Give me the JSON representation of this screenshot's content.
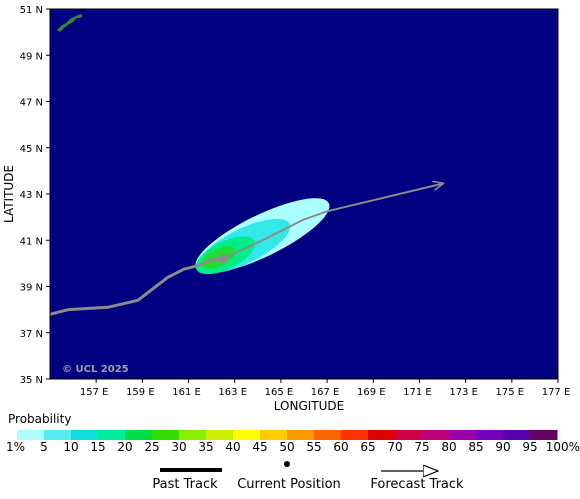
{
  "chart_data": {
    "type": "map",
    "credit": "© UCL 2025",
    "xlabel": "LONGITUDE",
    "ylabel": "LATITUDE",
    "xlim": [
      155,
      177
    ],
    "ylim": [
      35,
      51
    ],
    "x_ticks": [
      157,
      159,
      161,
      163,
      165,
      167,
      169,
      171,
      173,
      175,
      177
    ],
    "x_tick_labels": [
      "157 E",
      "159 E",
      "161 E",
      "163 E",
      "165 E",
      "167 E",
      "169 E",
      "171 E",
      "173 E",
      "175 E",
      "177 E"
    ],
    "y_ticks": [
      35,
      37,
      39,
      41,
      43,
      45,
      47,
      49,
      51
    ],
    "y_tick_labels": [
      "35 N",
      "37 N",
      "39 N",
      "41 N",
      "43 N",
      "45 N",
      "47 N",
      "49 N",
      "51 N"
    ],
    "ocean_color": "#000080",
    "land_color": "#2e8b2e",
    "track_color": "#8c8c8c",
    "past_track": [
      [
        155.0,
        37.8
      ],
      [
        155.8,
        38.0
      ],
      [
        157.5,
        38.1
      ],
      [
        158.8,
        38.4
      ],
      [
        160.1,
        39.4
      ],
      [
        160.8,
        39.75
      ],
      [
        161.4,
        39.9
      ],
      [
        162.0,
        40.15
      ],
      [
        162.5,
        40.2
      ]
    ],
    "current_position": [
      162.5,
      40.2
    ],
    "forecast_track": [
      [
        162.5,
        40.2
      ],
      [
        164.2,
        41.0
      ],
      [
        166.0,
        41.9
      ],
      [
        167.0,
        42.25
      ],
      [
        172.0,
        43.45
      ]
    ],
    "probability_field": {
      "description": "strike probability swath along forecast track",
      "levels": [
        {
          "lon": 164.2,
          "lat": 41.2,
          "rx": 3.2,
          "ry": 0.9,
          "angle": -26,
          "color": "#aaffff"
        },
        {
          "lon": 163.4,
          "lat": 40.75,
          "rx": 2.2,
          "ry": 0.75,
          "angle": -26,
          "color": "#33e8e8"
        },
        {
          "lon": 162.6,
          "lat": 40.35,
          "rx": 1.4,
          "ry": 0.6,
          "angle": -26,
          "color": "#00ee88"
        },
        {
          "lon": 162.3,
          "lat": 40.25,
          "rx": 0.8,
          "ry": 0.38,
          "angle": -26,
          "color": "#22dd33"
        }
      ]
    },
    "legend": {
      "title": "Probability",
      "labels": [
        "1%",
        "5",
        "10",
        "15",
        "20",
        "25",
        "30",
        "35",
        "40",
        "45",
        "50",
        "55",
        "60",
        "65",
        "70",
        "75",
        "80",
        "85",
        "90",
        "95",
        "100%"
      ],
      "colors": [
        "#aaffff",
        "#55eeee",
        "#11dddd",
        "#00ee99",
        "#00dd44",
        "#33dd00",
        "#88ee00",
        "#ccee00",
        "#ffff00",
        "#ffcc00",
        "#ff9900",
        "#ff6600",
        "#ff3300",
        "#dd0000",
        "#cc0044",
        "#bb0077",
        "#9900aa",
        "#7700bb",
        "#5500aa",
        "#660066"
      ]
    },
    "key": {
      "past_track": "Past Track",
      "current_position": "Current Position",
      "forecast_track": "Forecast Track"
    }
  }
}
